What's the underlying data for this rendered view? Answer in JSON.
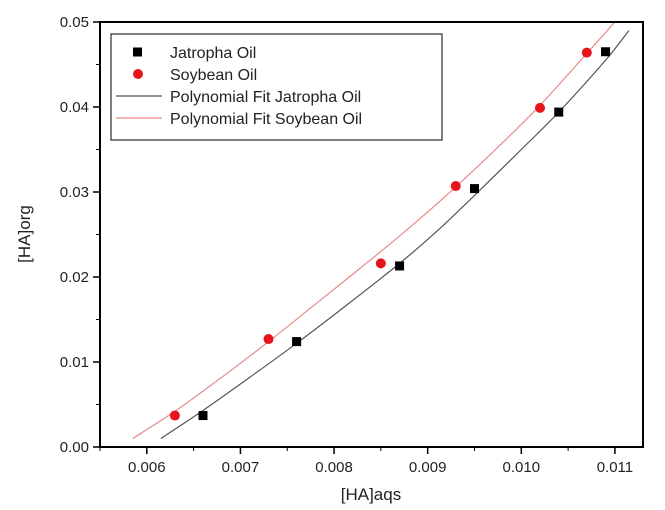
{
  "chart_data": {
    "type": "scatter",
    "title": "",
    "xlabel": "[HA]aqs",
    "ylabel": "[HA]org",
    "xlim": [
      0.0055,
      0.0113
    ],
    "ylim": [
      0.0,
      0.05
    ],
    "x_ticks": [
      "0.006",
      "0.007",
      "0.008",
      "0.009",
      "0.010",
      "0.011"
    ],
    "y_ticks": [
      "0.00",
      "0.01",
      "0.02",
      "0.03",
      "0.04",
      "0.05"
    ],
    "grid": false,
    "legend_position": "top-left",
    "series": [
      {
        "name": "Jatropha Oil",
        "kind": "points",
        "marker": "square",
        "color": "#000000",
        "x": [
          0.0066,
          0.0076,
          0.0087,
          0.0095,
          0.0104,
          0.0109
        ],
        "y": [
          0.0037,
          0.0124,
          0.0213,
          0.0304,
          0.0394,
          0.0465
        ]
      },
      {
        "name": "Soybean Oil",
        "kind": "points",
        "marker": "circle",
        "color": "#e8141c",
        "x": [
          0.0063,
          0.0073,
          0.0085,
          0.0093,
          0.0102,
          0.0107
        ],
        "y": [
          0.0037,
          0.0127,
          0.0216,
          0.0307,
          0.0399,
          0.0464
        ]
      },
      {
        "name": "Polynomial Fit Jatropha Oil",
        "kind": "line",
        "color": "#555555",
        "x": [
          0.00615,
          0.0066,
          0.0071,
          0.0076,
          0.0081,
          0.0087,
          0.0091,
          0.0095,
          0.01,
          0.0104,
          0.0109,
          0.01115
        ],
        "y": [
          0.001,
          0.0043,
          0.0082,
          0.0122,
          0.0164,
          0.0216,
          0.0254,
          0.0296,
          0.035,
          0.0394,
          0.0455,
          0.049
        ]
      },
      {
        "name": "Polynomial Fit Soybean Oil",
        "kind": "line",
        "color": "#e88a8a",
        "x": [
          0.00585,
          0.0063,
          0.0068,
          0.0073,
          0.0078,
          0.0085,
          0.0089,
          0.0093,
          0.0098,
          0.0102,
          0.0107,
          0.011
        ],
        "y": [
          0.001,
          0.0042,
          0.0082,
          0.0124,
          0.0168,
          0.023,
          0.0267,
          0.0306,
          0.0358,
          0.0402,
          0.0463,
          0.05
        ]
      }
    ]
  }
}
